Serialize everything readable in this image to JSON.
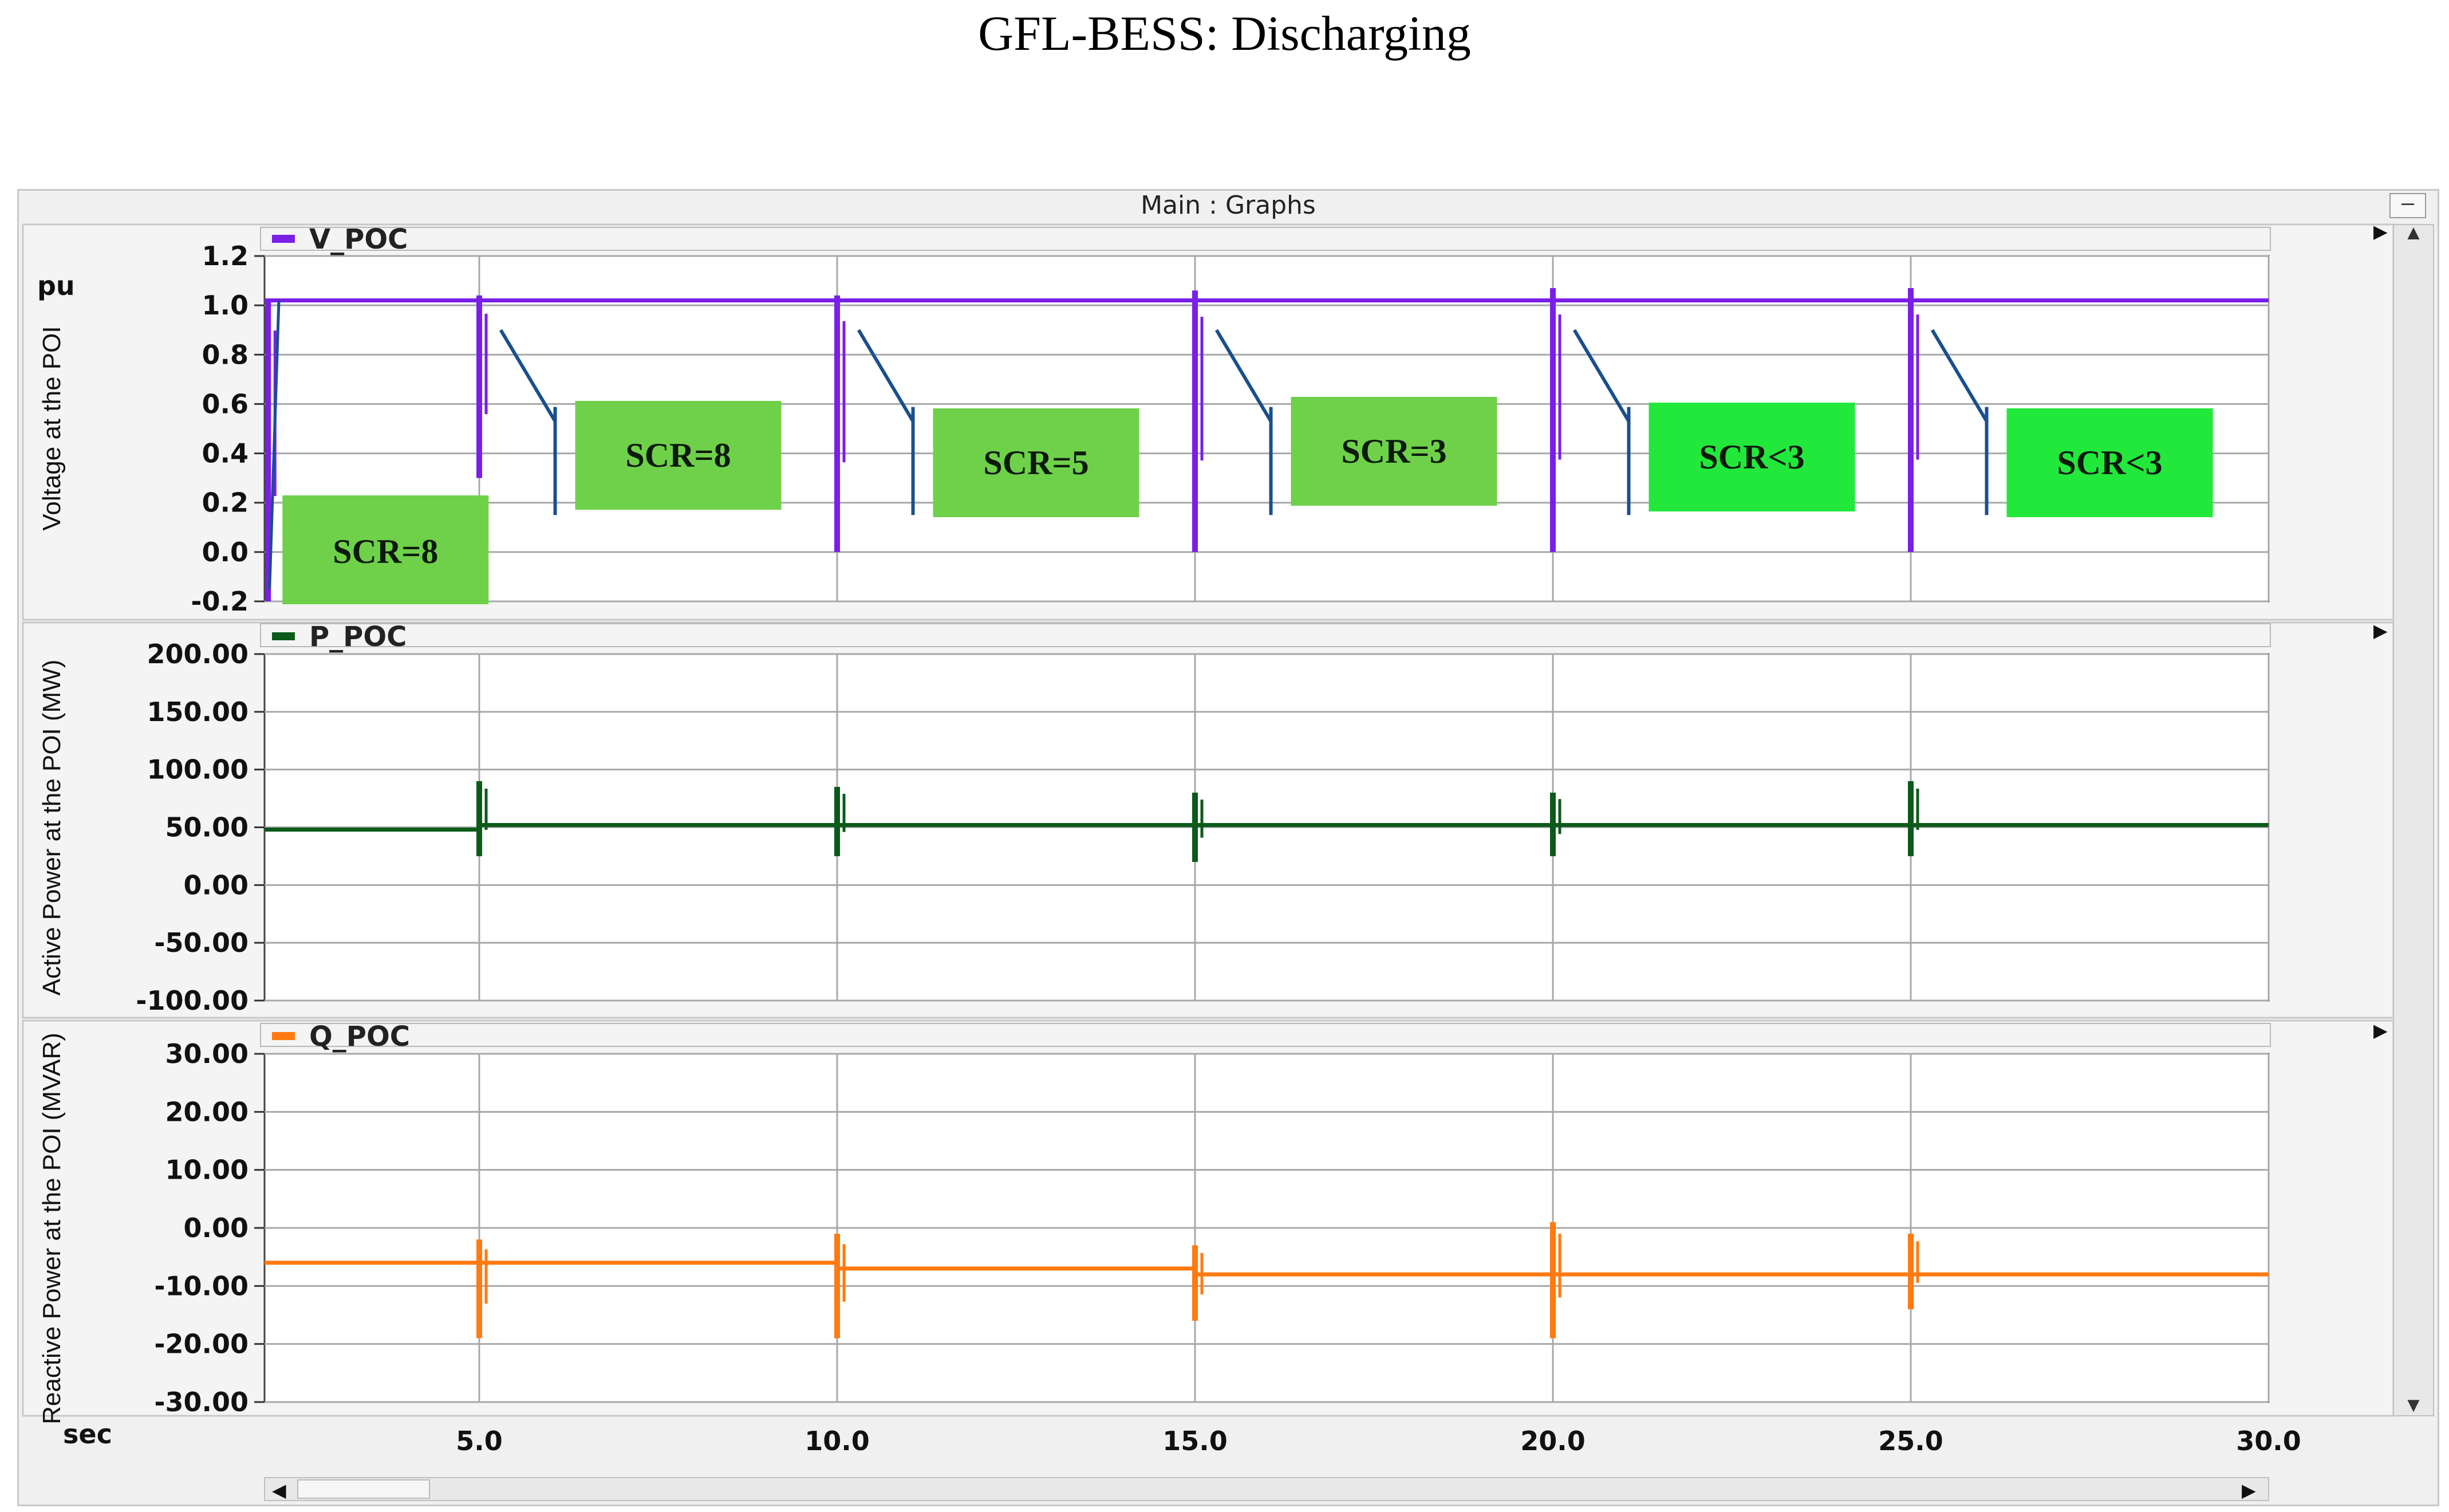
{
  "figure_title": "GFL-BESS: Discharging",
  "window": {
    "title": "Main : Graphs",
    "minimize_label": "–"
  },
  "x_axis": {
    "unit": "sec",
    "ticks": [
      "5.0",
      "10.0",
      "15.0",
      "20.0",
      "25.0",
      "30.0"
    ]
  },
  "colors": {
    "voltage": "#7a1fe8",
    "active": "#0b5a1a",
    "reactive": "#ff7a10",
    "scr_box": "#6fd14a",
    "scr_box_bright": "#22e83c",
    "pointer": "#1a4f8c"
  },
  "chart_data": [
    {
      "type": "line",
      "legend": "V_POC",
      "ylabel": "Voltage at the POI",
      "unit": "pu",
      "ylim": [
        -0.2,
        1.2
      ],
      "yticks": [
        "1.2",
        "1.0",
        "0.8",
        "0.6",
        "0.4",
        "0.2",
        "0.0",
        "-0.2"
      ],
      "xlim": [
        2.0,
        30.0
      ],
      "baseline": 1.02,
      "events": [
        {
          "t": 2.05,
          "min": -0.2,
          "max": 1.02
        },
        {
          "t": 5.0,
          "min": 0.3,
          "max": 1.04
        },
        {
          "t": 10.0,
          "min": 0.0,
          "max": 1.04
        },
        {
          "t": 15.0,
          "min": 0.0,
          "max": 1.06
        },
        {
          "t": 20.0,
          "min": 0.0,
          "max": 1.07
        },
        {
          "t": 25.0,
          "min": 0.0,
          "max": 1.07
        }
      ],
      "annotations": [
        {
          "label": "SCR=8",
          "t": 2.1
        },
        {
          "label": "SCR=8",
          "t": 5.1
        },
        {
          "label": "SCR=5",
          "t": 10.1
        },
        {
          "label": "SCR=3",
          "t": 15.1
        },
        {
          "label": "SCR<3",
          "t": 20.1
        },
        {
          "label": "SCR<3",
          "t": 25.1
        }
      ]
    },
    {
      "type": "line",
      "legend": "P_POC",
      "ylabel": "Active Power at the POI (MW)",
      "ylim": [
        -100,
        200
      ],
      "yticks": [
        "200.00",
        "150.00",
        "100.00",
        "50.00",
        "0.00",
        "-50.00",
        "-100.00"
      ],
      "xlim": [
        2.0,
        30.0
      ],
      "segments": [
        {
          "t0": 2.0,
          "t1": 5.0,
          "y": 48
        },
        {
          "t0": 5.0,
          "t1": 30.0,
          "y": 52
        }
      ],
      "events": [
        {
          "t": 5.0,
          "min": 25,
          "max": 90
        },
        {
          "t": 10.0,
          "min": 25,
          "max": 85
        },
        {
          "t": 15.0,
          "min": 20,
          "max": 80
        },
        {
          "t": 20.0,
          "min": 25,
          "max": 80
        },
        {
          "t": 25.0,
          "min": 25,
          "max": 90
        }
      ]
    },
    {
      "type": "line",
      "legend": "Q_POC",
      "ylabel": "Reactive Power at the POI (MVAR)",
      "ylim": [
        -30,
        30
      ],
      "yticks": [
        "30.00",
        "20.00",
        "10.00",
        "0.00",
        "-10.00",
        "-20.00",
        "-30.00"
      ],
      "xlim": [
        2.0,
        30.0
      ],
      "segments": [
        {
          "t0": 2.0,
          "t1": 10.0,
          "y": -6
        },
        {
          "t0": 10.0,
          "t1": 15.0,
          "y": -7
        },
        {
          "t0": 15.0,
          "t1": 30.0,
          "y": -8
        }
      ],
      "events": [
        {
          "t": 5.0,
          "min": -19,
          "max": -2
        },
        {
          "t": 10.0,
          "min": -19,
          "max": -1
        },
        {
          "t": 15.0,
          "min": -16,
          "max": -3
        },
        {
          "t": 20.0,
          "min": -19,
          "max": 1
        },
        {
          "t": 25.0,
          "min": -14,
          "max": -1
        }
      ]
    }
  ]
}
